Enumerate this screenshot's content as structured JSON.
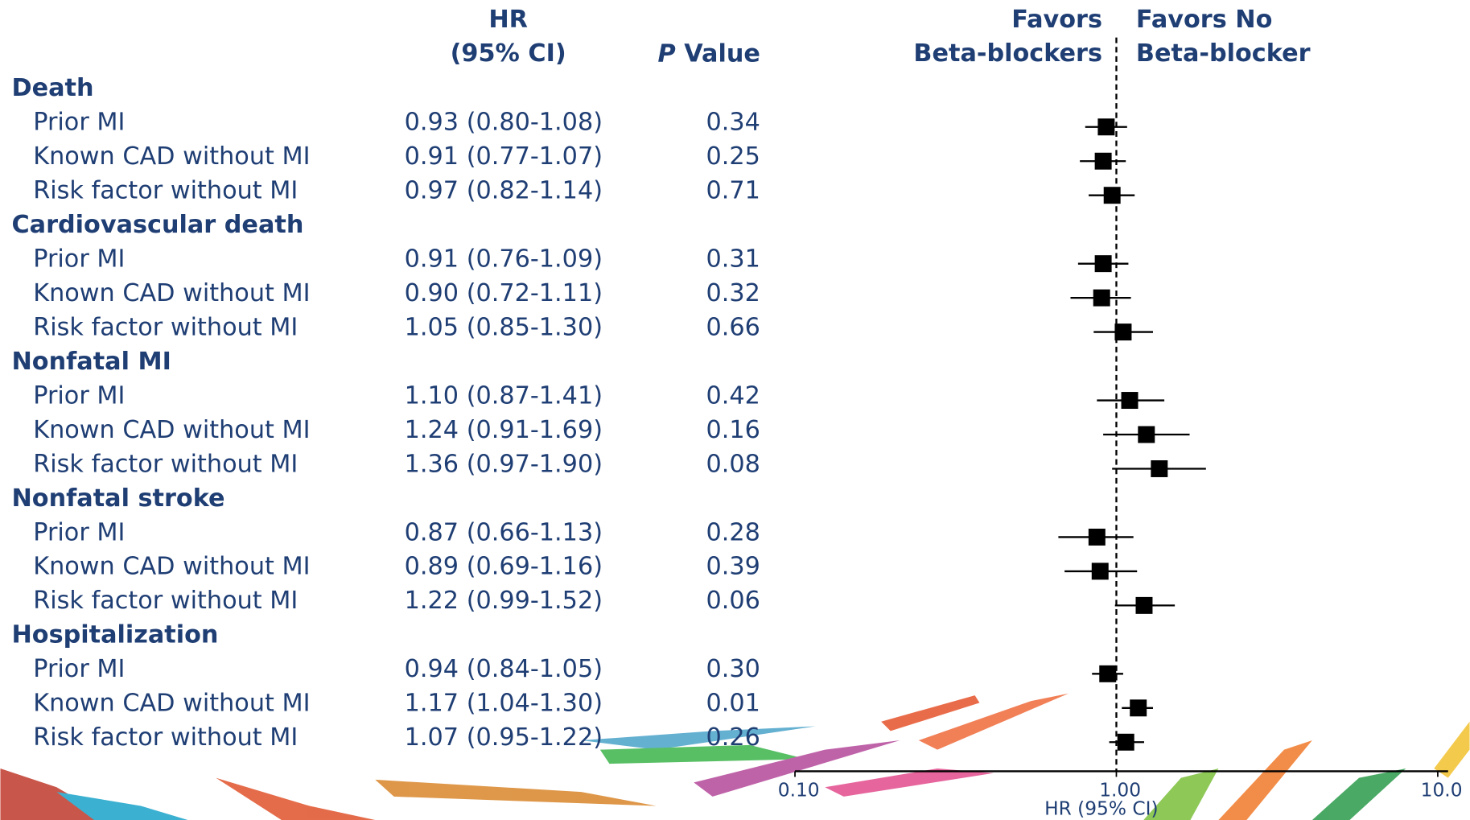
{
  "chart_data": {
    "type": "forest",
    "header_hr": "HR",
    "header_ci": "(95% CI)",
    "header_p": "P",
    "header_value": "Value",
    "favors_left": [
      "Favors",
      "Beta-blockers"
    ],
    "favors_right": [
      "Favors No",
      "Beta-blocker"
    ],
    "xlabel": "HR (95% CI)",
    "log_scale": true,
    "xlim": [
      0.1,
      10
    ],
    "xticks": [
      {
        "value": 0.1,
        "label": "0.10"
      },
      {
        "value": 1,
        "label": "1.00"
      },
      {
        "value": 10,
        "label": "10.0"
      }
    ],
    "reference_line": 1,
    "color": "#000000",
    "groups": [
      {
        "name": "Death",
        "rows": [
          {
            "label": "Prior MI",
            "hr": 0.93,
            "lower": 0.8,
            "upper": 1.08,
            "hr_label": "0.93 (0.80-1.08)",
            "p": "0.34"
          },
          {
            "label": "Known CAD without MI",
            "hr": 0.91,
            "lower": 0.77,
            "upper": 1.07,
            "hr_label": "0.91 (0.77-1.07)",
            "p": "0.25"
          },
          {
            "label": "Risk factor without MI",
            "hr": 0.97,
            "lower": 0.82,
            "upper": 1.14,
            "hr_label": "0.97 (0.82-1.14)",
            "p": "0.71"
          }
        ]
      },
      {
        "name": "Cardiovascular death",
        "rows": [
          {
            "label": "Prior MI",
            "hr": 0.91,
            "lower": 0.76,
            "upper": 1.09,
            "hr_label": "0.91 (0.76-1.09)",
            "p": "0.31"
          },
          {
            "label": "Known CAD without MI",
            "hr": 0.9,
            "lower": 0.72,
            "upper": 1.11,
            "hr_label": "0.90 (0.72-1.11)",
            "p": "0.32"
          },
          {
            "label": "Risk factor without MI",
            "hr": 1.05,
            "lower": 0.85,
            "upper": 1.3,
            "hr_label": "1.05 (0.85-1.30)",
            "p": "0.66"
          }
        ]
      },
      {
        "name": "Nonfatal MI",
        "rows": [
          {
            "label": "Prior MI",
            "hr": 1.1,
            "lower": 0.87,
            "upper": 1.41,
            "hr_label": "1.10 (0.87-1.41)",
            "p": "0.42"
          },
          {
            "label": "Known CAD without MI",
            "hr": 1.24,
            "lower": 0.91,
            "upper": 1.69,
            "hr_label": "1.24 (0.91-1.69)",
            "p": "0.16"
          },
          {
            "label": "Risk factor without MI",
            "hr": 1.36,
            "lower": 0.97,
            "upper": 1.9,
            "hr_label": "1.36 (0.97-1.90)",
            "p": "0.08"
          }
        ]
      },
      {
        "name": "Nonfatal stroke",
        "rows": [
          {
            "label": "Prior MI",
            "hr": 0.87,
            "lower": 0.66,
            "upper": 1.13,
            "hr_label": "0.87 (0.66-1.13)",
            "p": "0.28"
          },
          {
            "label": "Known CAD without MI",
            "hr": 0.89,
            "lower": 0.69,
            "upper": 1.16,
            "hr_label": "0.89 (0.69-1.16)",
            "p": "0.39"
          },
          {
            "label": "Risk factor without MI",
            "hr": 1.22,
            "lower": 0.99,
            "upper": 1.52,
            "hr_label": "1.22 (0.99-1.52)",
            "p": "0.06"
          }
        ]
      },
      {
        "name": "Hospitalization",
        "rows": [
          {
            "label": "Prior MI",
            "hr": 0.94,
            "lower": 0.84,
            "upper": 1.05,
            "hr_label": "0.94 (0.84-1.05)",
            "p": "0.30"
          },
          {
            "label": "Known CAD without MI",
            "hr": 1.17,
            "lower": 1.04,
            "upper": 1.3,
            "hr_label": "1.17 (1.04-1.30)",
            "p": "0.01"
          },
          {
            "label": "Risk factor without MI",
            "hr": 1.07,
            "lower": 0.95,
            "upper": 1.22,
            "hr_label": "1.07 (0.95-1.22)",
            "p": "0.26"
          }
        ]
      }
    ]
  }
}
